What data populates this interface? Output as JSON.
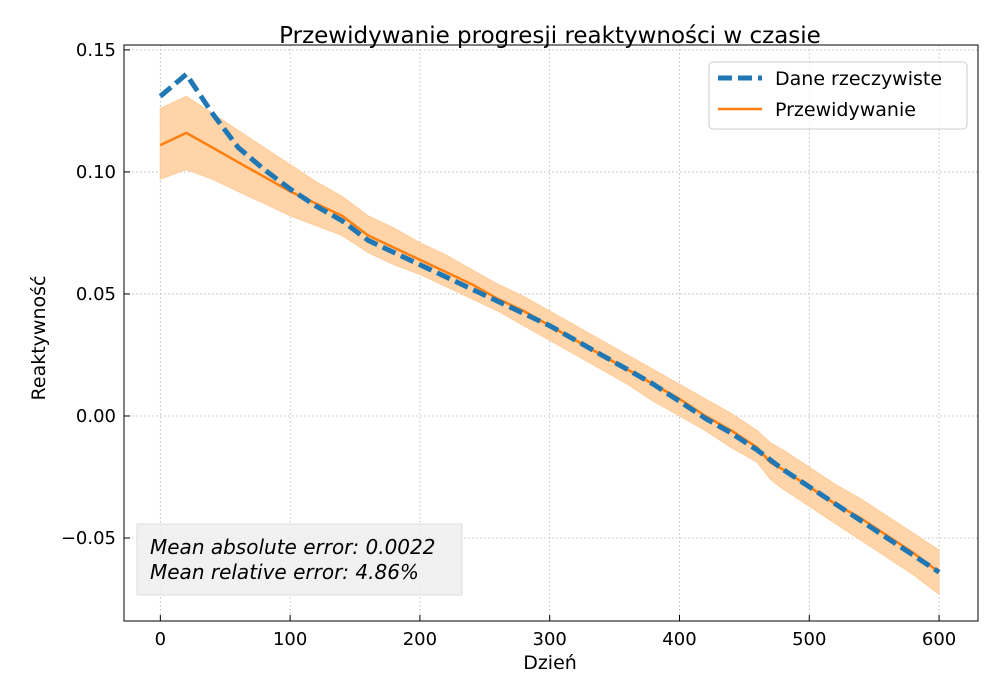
{
  "chart_data": {
    "type": "line",
    "title": "Przewidywanie progresji reaktywności w czasie",
    "xlabel": "Dzień",
    "ylabel": "Reaktywność",
    "xlim": [
      -28,
      630
    ],
    "ylim": [
      -0.084,
      0.152
    ],
    "xticks": [
      0,
      100,
      200,
      300,
      400,
      500,
      600
    ],
    "yticks": [
      -0.05,
      0.0,
      0.05,
      0.1,
      0.15
    ],
    "ytick_labels": [
      "−0.05",
      "0.00",
      "0.05",
      "0.10",
      "0.15"
    ],
    "grid": true,
    "legend_position": "top-right",
    "series": [
      {
        "name": "Dane rzeczywiste",
        "color": "#1f77b4",
        "style": "dashed",
        "x": [
          0,
          20,
          40,
          60,
          80,
          100,
          120,
          140,
          160,
          180,
          200,
          220,
          240,
          260,
          280,
          300,
          320,
          340,
          360,
          380,
          400,
          420,
          440,
          460,
          470,
          480,
          500,
          520,
          540,
          560,
          580,
          600
        ],
        "values": [
          0.131,
          0.14,
          0.124,
          0.11,
          0.101,
          0.093,
          0.086,
          0.08,
          0.072,
          0.067,
          0.062,
          0.057,
          0.052,
          0.047,
          0.042,
          0.037,
          0.031,
          0.025,
          0.019,
          0.013,
          0.006,
          -0.001,
          -0.007,
          -0.014,
          -0.018,
          -0.022,
          -0.029,
          -0.036,
          -0.043,
          -0.05,
          -0.057,
          -0.064
        ]
      },
      {
        "name": "Przewidywanie",
        "color": "#ff7f0e",
        "style": "solid",
        "x": [
          0,
          20,
          40,
          60,
          80,
          100,
          120,
          140,
          160,
          180,
          200,
          220,
          240,
          260,
          280,
          300,
          320,
          340,
          360,
          380,
          400,
          420,
          440,
          460,
          470,
          480,
          500,
          520,
          540,
          560,
          580,
          600
        ],
        "values": [
          0.111,
          0.116,
          0.11,
          0.104,
          0.098,
          0.092,
          0.087,
          0.082,
          0.074,
          0.069,
          0.064,
          0.059,
          0.054,
          0.048,
          0.043,
          0.037,
          0.031,
          0.025,
          0.019,
          0.013,
          0.007,
          0.0,
          -0.006,
          -0.013,
          -0.019,
          -0.022,
          -0.029,
          -0.036,
          -0.042,
          -0.049,
          -0.056,
          -0.064
        ],
        "band_lower": [
          0.097,
          0.101,
          0.097,
          0.092,
          0.087,
          0.082,
          0.078,
          0.074,
          0.067,
          0.062,
          0.058,
          0.053,
          0.048,
          0.043,
          0.037,
          0.031,
          0.025,
          0.019,
          0.013,
          0.006,
          0.0,
          -0.006,
          -0.013,
          -0.019,
          -0.026,
          -0.03,
          -0.037,
          -0.044,
          -0.051,
          -0.058,
          -0.065,
          -0.073
        ],
        "band_upper": [
          0.126,
          0.131,
          0.124,
          0.117,
          0.11,
          0.103,
          0.096,
          0.09,
          0.082,
          0.077,
          0.071,
          0.066,
          0.06,
          0.054,
          0.049,
          0.043,
          0.037,
          0.031,
          0.025,
          0.019,
          0.013,
          0.007,
          0.001,
          -0.006,
          -0.011,
          -0.014,
          -0.021,
          -0.028,
          -0.034,
          -0.041,
          -0.048,
          -0.055
        ],
        "band_color": "#ffcc99"
      }
    ],
    "annotation": {
      "lines": [
        "Mean absolute error: 0.0022",
        "Mean relative error: 4.86%"
      ]
    }
  }
}
